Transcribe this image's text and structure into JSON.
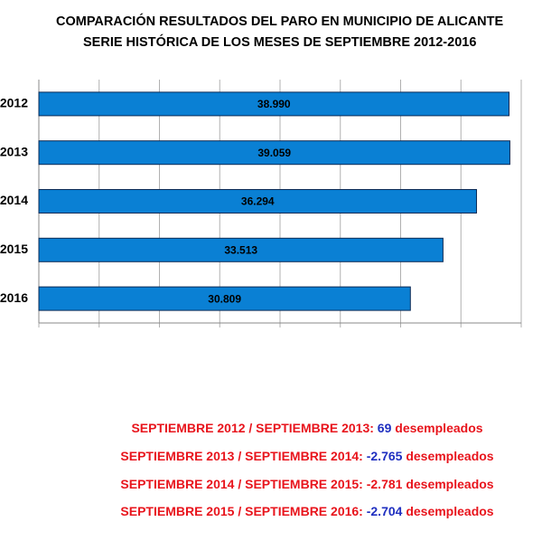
{
  "chart_data": {
    "type": "bar",
    "orientation": "horizontal",
    "title": "COMPARACIÓN RESULTADOS DEL PARO EN  MUNICIPIO DE ALICANTE",
    "subtitle": "SERIE HISTÓRICA DE LOS MESES DE SEPTIEMBRE 2012-2016",
    "categories": [
      "2012",
      "2013",
      "2014",
      "2015",
      "2016"
    ],
    "values": [
      38990,
      39059,
      36294,
      33513,
      30809
    ],
    "value_labels": [
      "38.990",
      "39.059",
      "36.294",
      "33.513",
      "30.809"
    ],
    "color": "#0a80d4",
    "xlim": [
      0,
      40000
    ],
    "xticks": [
      0,
      5000,
      10000,
      15000,
      20000,
      25000,
      30000,
      35000,
      40000
    ],
    "grid": true
  },
  "notes": [
    {
      "label": "SEPTIEMBRE 2012 / SEPTIEMBRE 2013:",
      "value": "69",
      "unit": "desempleados",
      "value_color": "#1f2fc0"
    },
    {
      "label": "SEPTIEMBRE 2013 / SEPTIEMBRE 2014:",
      "value": "-2.765",
      "unit": "desempleados",
      "value_color": "#1f2fc0"
    },
    {
      "label": "SEPTIEMBRE 2014 /  SEPTIEMBRE 2015:",
      "value": "-2.781",
      "unit": "desempleados",
      "value_color": "#e8141c"
    },
    {
      "label": "SEPTIEMBRE 2015 / SEPTIEMBRE 2016:",
      "value": "-2.704",
      "unit": "desempleados",
      "value_color": "#1f2fc0"
    }
  ],
  "note_color": "#e8141c"
}
